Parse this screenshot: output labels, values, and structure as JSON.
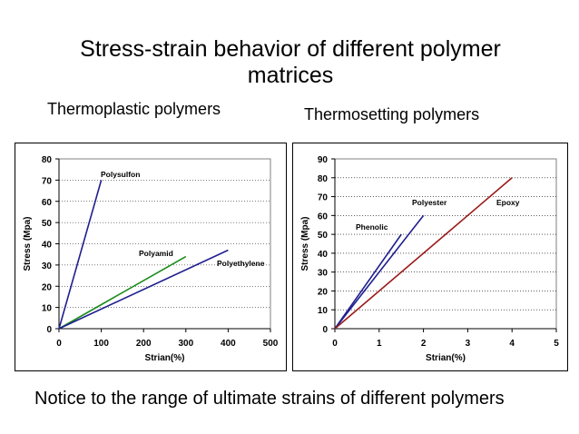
{
  "page": {
    "title": "Stress-strain behavior of different polymer matrices",
    "subtitle_left": "Thermoplastic polymers",
    "subtitle_right": "Thermosetting polymers",
    "footnote": "Notice to the range of ultimate strains of different polymers"
  },
  "chart_data": [
    {
      "type": "line",
      "xlabel": "Strian(%)",
      "ylabel": "Stress (Mpa)",
      "xlim": [
        0,
        500
      ],
      "ylim": [
        0,
        80
      ],
      "xticks": [
        0,
        100,
        200,
        300,
        400,
        500
      ],
      "yticks": [
        0,
        10,
        20,
        30,
        40,
        50,
        60,
        70,
        80
      ],
      "grid": true,
      "series": [
        {
          "name": "Polysulfon",
          "color": "#1f1f8f",
          "x": [
            0,
            100
          ],
          "y": [
            0,
            70
          ]
        },
        {
          "name": "Polyamid",
          "color": "#1a8a1a",
          "x": [
            0,
            300
          ],
          "y": [
            0,
            34
          ]
        },
        {
          "name": "Polyethylene",
          "color": "#1f1f8f",
          "x": [
            0,
            400
          ],
          "y": [
            0,
            37
          ]
        }
      ]
    },
    {
      "type": "line",
      "xlabel": "Strian(%)",
      "ylabel": "Stress (Mpa)",
      "xlim": [
        0,
        5
      ],
      "ylim": [
        0,
        90
      ],
      "xticks": [
        0,
        1,
        2,
        3,
        4,
        5
      ],
      "yticks": [
        0,
        10,
        20,
        30,
        40,
        50,
        60,
        70,
        80,
        90
      ],
      "grid": true,
      "series": [
        {
          "name": "Phenolic",
          "color": "#1f1f8f",
          "x": [
            0,
            1.5
          ],
          "y": [
            0,
            50
          ]
        },
        {
          "name": "Polyester",
          "color": "#1f1f8f",
          "x": [
            0,
            2
          ],
          "y": [
            0,
            60
          ]
        },
        {
          "name": "Epoxy",
          "color": "#9a1a1a",
          "x": [
            0,
            4
          ],
          "y": [
            0,
            80
          ]
        }
      ]
    }
  ]
}
